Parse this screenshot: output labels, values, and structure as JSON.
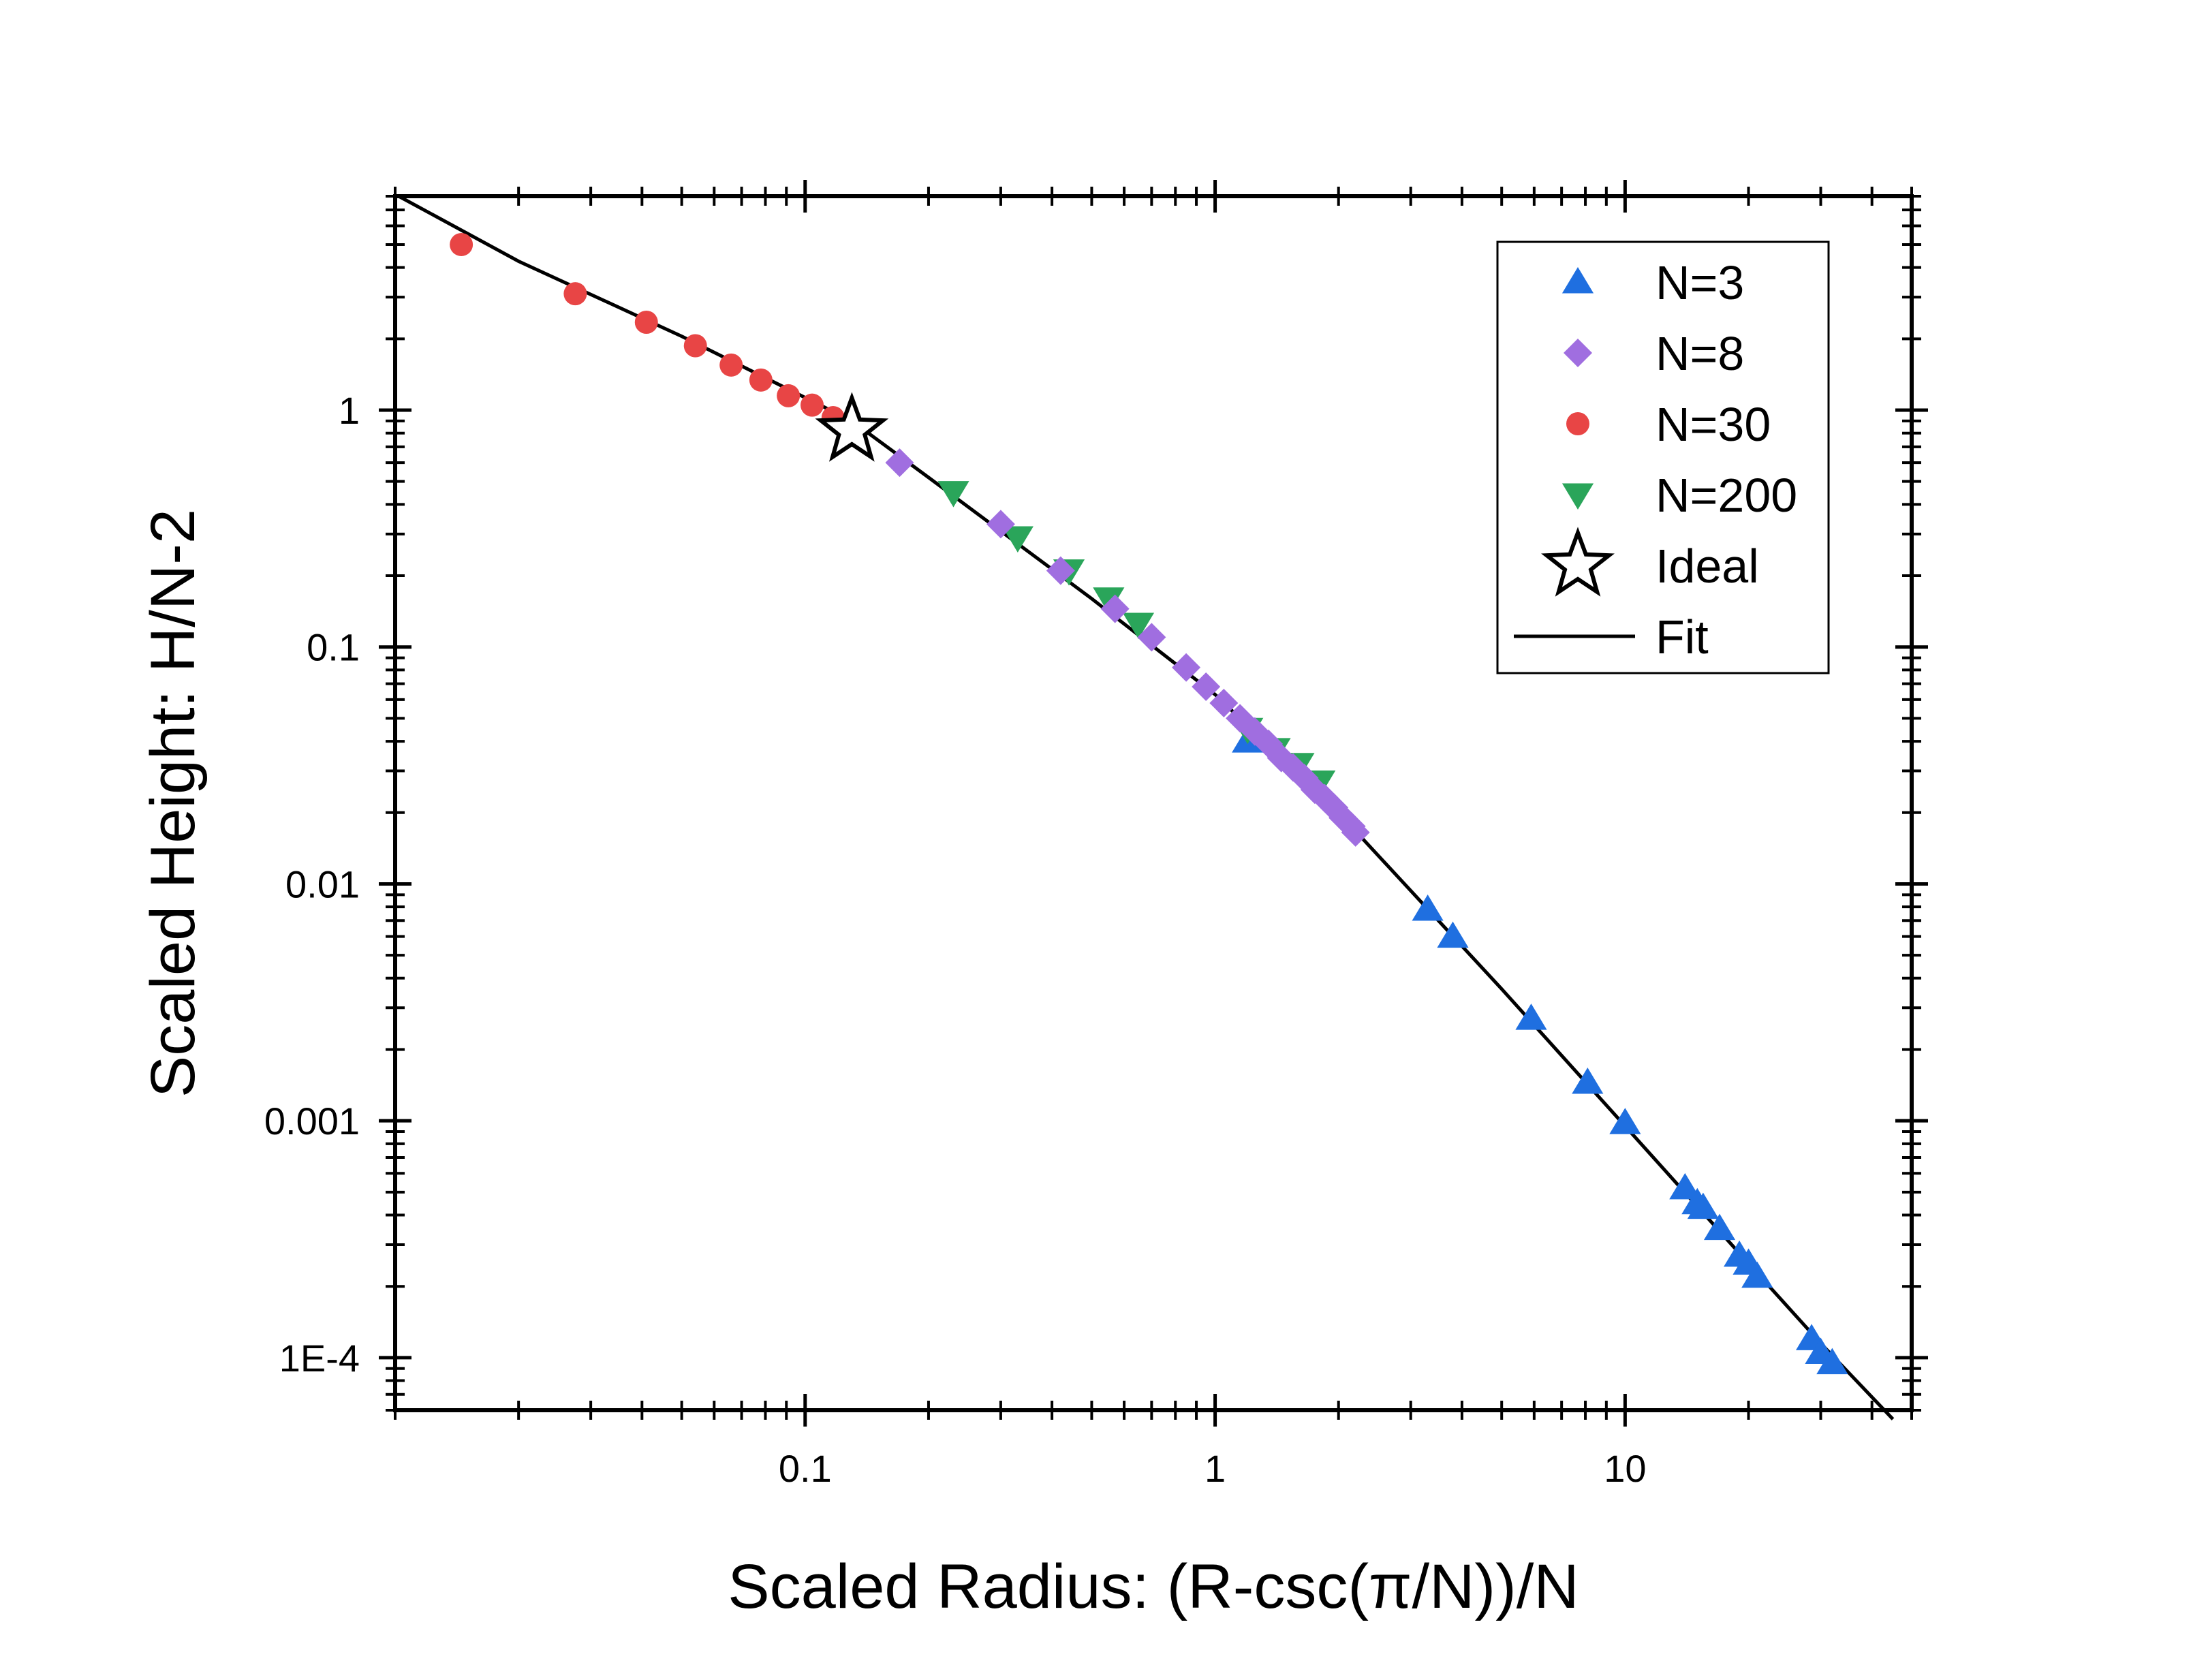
{
  "chart_data": {
    "type": "scatter",
    "title": "",
    "xlabel": "Scaled Radius: (R-csc(π/N))/N",
    "ylabel": "Scaled Height: H/N-2",
    "xscale": "log",
    "yscale": "log",
    "xlim": [
      0.01,
      50
    ],
    "ylim": [
      6e-05,
      8
    ],
    "grid": false,
    "legend_position": "top-right",
    "x_ticks": [
      {
        "value": 0.1,
        "label": "0.1"
      },
      {
        "value": 1,
        "label": "1"
      },
      {
        "value": 10,
        "label": "10"
      }
    ],
    "y_ticks": [
      {
        "value": 1,
        "label": "1"
      },
      {
        "value": 0.1,
        "label": "0.1"
      },
      {
        "value": 0.01,
        "label": "0.01"
      },
      {
        "value": 0.001,
        "label": "0.001"
      },
      {
        "value": 0.0001,
        "label": "1E-4"
      }
    ],
    "series": [
      {
        "name": "N=3",
        "marker": "triangle-up",
        "color": "#1f6fe0",
        "points": [
          [
            1.2,
            0.04
          ],
          [
            3.3,
            0.0078
          ],
          [
            3.8,
            0.006
          ],
          [
            5.9,
            0.0027
          ],
          [
            8.1,
            0.00145
          ],
          [
            10,
            0.00098
          ],
          [
            14,
            0.00052
          ],
          [
            15,
            0.00045
          ],
          [
            15.5,
            0.00043
          ],
          [
            17,
            0.00035
          ],
          [
            19,
            0.00027
          ],
          [
            20,
            0.00025
          ],
          [
            21,
            0.00022
          ],
          [
            28.5,
            0.00012
          ],
          [
            30,
            0.000105
          ],
          [
            32,
            9.5e-05
          ]
        ]
      },
      {
        "name": "N=8",
        "marker": "diamond",
        "color": "#a06ee0",
        "points": [
          [
            0.17,
            0.6
          ],
          [
            0.3,
            0.33
          ],
          [
            0.42,
            0.21
          ],
          [
            0.57,
            0.145
          ],
          [
            0.7,
            0.11
          ],
          [
            0.85,
            0.082
          ],
          [
            0.95,
            0.068
          ],
          [
            1.05,
            0.058
          ],
          [
            1.15,
            0.05
          ],
          [
            1.25,
            0.044
          ],
          [
            1.35,
            0.039
          ],
          [
            1.45,
            0.034
          ],
          [
            1.55,
            0.031
          ],
          [
            1.65,
            0.028
          ],
          [
            1.75,
            0.025
          ],
          [
            1.85,
            0.023
          ],
          [
            1.95,
            0.021
          ],
          [
            2.05,
            0.019
          ],
          [
            2.15,
            0.0175
          ],
          [
            2.2,
            0.0165
          ]
        ]
      },
      {
        "name": "N=30",
        "marker": "circle",
        "color": "#e84545",
        "points": [
          [
            0.0145,
            5.0
          ],
          [
            0.0275,
            3.1
          ],
          [
            0.041,
            2.35
          ],
          [
            0.054,
            1.87
          ],
          [
            0.066,
            1.55
          ],
          [
            0.078,
            1.34
          ],
          [
            0.091,
            1.15
          ],
          [
            0.104,
            1.05
          ],
          [
            0.117,
            0.93
          ]
        ]
      },
      {
        "name": "N=200",
        "marker": "triangle-down",
        "color": "#2aa55a",
        "points": [
          [
            0.23,
            0.45
          ],
          [
            0.33,
            0.29
          ],
          [
            0.44,
            0.21
          ],
          [
            0.55,
            0.16
          ],
          [
            0.65,
            0.125
          ],
          [
            1.2,
            0.045
          ],
          [
            1.4,
            0.037
          ],
          [
            1.6,
            0.032
          ],
          [
            1.8,
            0.027
          ]
        ]
      },
      {
        "name": "Ideal",
        "marker": "star",
        "color": "#000000",
        "points": [
          [
            0.13,
            0.82
          ]
        ]
      },
      {
        "name": "Fit",
        "marker": "line",
        "color": "#000000",
        "points": [
          [
            0.0102,
            8.0
          ],
          [
            0.02,
            4.25
          ],
          [
            0.05,
            2.05
          ],
          [
            0.1,
            1.13
          ],
          [
            0.13,
            0.9
          ],
          [
            0.2,
            0.52
          ],
          [
            0.5,
            0.16
          ],
          [
            1,
            0.063
          ],
          [
            2,
            0.02
          ],
          [
            5,
            0.0036
          ],
          [
            10,
            0.00095
          ],
          [
            20,
            0.00025
          ],
          [
            30,
            0.000115
          ],
          [
            45,
            5.5e-05
          ]
        ]
      }
    ]
  }
}
